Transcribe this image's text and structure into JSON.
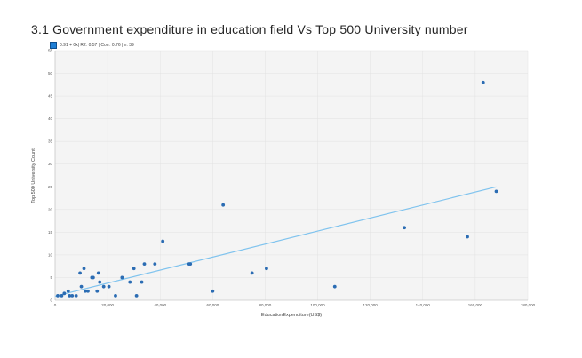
{
  "page": {
    "title": "3.1 Government expenditure in education field Vs Top 500 University number"
  },
  "legend": {
    "label": "0.91 + 0x| R2: 0.57 | Corr: 0.76 | n: 39",
    "color": "#1f7fd6"
  },
  "chart_data": {
    "type": "scatter",
    "title": "3.1 Government expenditure in education field Vs Top 500 University number",
    "xlabel": "EducationExpenditure(US$)",
    "ylabel": "Top 500 University Count",
    "xlim": [
      0,
      180000
    ],
    "ylim": [
      0,
      55
    ],
    "x_ticks": [
      0,
      20000,
      40000,
      60000,
      80000,
      100000,
      120000,
      140000,
      160000,
      180000
    ],
    "x_tick_labels": [
      "0",
      "20,000",
      "40,000",
      "60,000",
      "80,000",
      "100,000",
      "120,000",
      "140,000",
      "160,000",
      "180,000"
    ],
    "y_ticks": [
      0,
      5,
      10,
      15,
      20,
      25,
      30,
      35,
      40,
      45,
      50,
      55
    ],
    "y_tick_labels": [
      "0",
      "5",
      "10",
      "15",
      "20",
      "25",
      "30",
      "35",
      "40",
      "45",
      "50",
      "55"
    ],
    "grid": true,
    "point_color": "#2b6cb3",
    "trend_color": "#7fc3ee",
    "trendline": {
      "x": [
        0,
        168000
      ],
      "y": [
        0.9,
        25
      ]
    },
    "series": [
      {
        "points": [
          [
            1000,
            1
          ],
          [
            2500,
            1
          ],
          [
            3500,
            1.5
          ],
          [
            5000,
            2
          ],
          [
            5500,
            1
          ],
          [
            6500,
            1
          ],
          [
            8000,
            1
          ],
          [
            9500,
            6
          ],
          [
            10000,
            3
          ],
          [
            11000,
            7
          ],
          [
            11500,
            2
          ],
          [
            12500,
            2
          ],
          [
            14000,
            5
          ],
          [
            14500,
            5
          ],
          [
            16000,
            2
          ],
          [
            16500,
            6
          ],
          [
            17000,
            4
          ],
          [
            18500,
            3
          ],
          [
            20500,
            3
          ],
          [
            23000,
            1
          ],
          [
            25500,
            5
          ],
          [
            28500,
            4
          ],
          [
            30000,
            7
          ],
          [
            31000,
            1
          ],
          [
            33000,
            4
          ],
          [
            34000,
            8
          ],
          [
            38000,
            8
          ],
          [
            41000,
            13
          ],
          [
            51000,
            8
          ],
          [
            51500,
            8
          ],
          [
            60000,
            2
          ],
          [
            64000,
            21
          ],
          [
            75000,
            6
          ],
          [
            80500,
            7
          ],
          [
            106500,
            3
          ],
          [
            133000,
            16
          ],
          [
            157000,
            14
          ],
          [
            163000,
            48
          ],
          [
            168000,
            24
          ]
        ]
      }
    ]
  }
}
